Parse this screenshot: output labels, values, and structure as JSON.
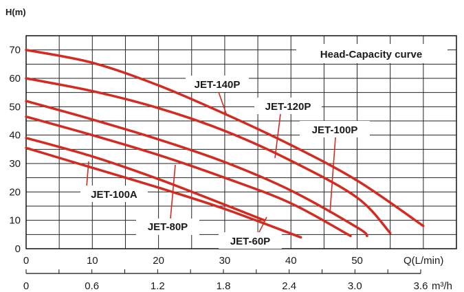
{
  "chart_data": {
    "type": "line",
    "title": "Head-Capacity curve",
    "ylabel": "H(m)",
    "xlabel": "Q(L/min)",
    "x2label": "m³/h",
    "xlim": [
      0,
      65
    ],
    "ylim": [
      0,
      75
    ],
    "x_ticks": [
      "0",
      "10",
      "20",
      "30",
      "40",
      "50"
    ],
    "y_ticks": [
      "0",
      "10",
      "20",
      "30",
      "40",
      "50",
      "60",
      "70"
    ],
    "x2_ticks": [
      "0",
      "0.6",
      "1.2",
      "1.8",
      "2.4",
      "3.0",
      "3.6"
    ],
    "grid": true,
    "series": [
      {
        "name": "JET-140P",
        "x": [
          0,
          10,
          20,
          30,
          40,
          50,
          60
        ],
        "y": [
          70,
          65.5,
          57.5,
          47.5,
          36.5,
          24,
          8
        ]
      },
      {
        "name": "JET-120P",
        "x": [
          0,
          10,
          20,
          30,
          40,
          50,
          55
        ],
        "y": [
          60,
          55.5,
          49.5,
          41.5,
          31,
          18,
          5.5
        ]
      },
      {
        "name": "JET-100P",
        "x": [
          0,
          10,
          20,
          30,
          40,
          50,
          51.5
        ],
        "y": [
          52,
          45.5,
          38.5,
          30.5,
          20.5,
          7.5,
          4.5
        ]
      },
      {
        "name": "JET-100A",
        "x": [
          0,
          10,
          20,
          30,
          40,
          49
        ],
        "y": [
          46.5,
          40,
          33,
          25,
          16,
          4.5
        ]
      },
      {
        "name": "JET-80P",
        "x": [
          0,
          10,
          20,
          30,
          36
        ],
        "y": [
          39,
          32.5,
          24.5,
          15.5,
          10
        ]
      },
      {
        "name": "JET-60P",
        "x": [
          0,
          10,
          20,
          30,
          41.5
        ],
        "y": [
          35.5,
          28.5,
          21.5,
          14,
          4
        ]
      }
    ],
    "line_color": "#d42a1f"
  }
}
